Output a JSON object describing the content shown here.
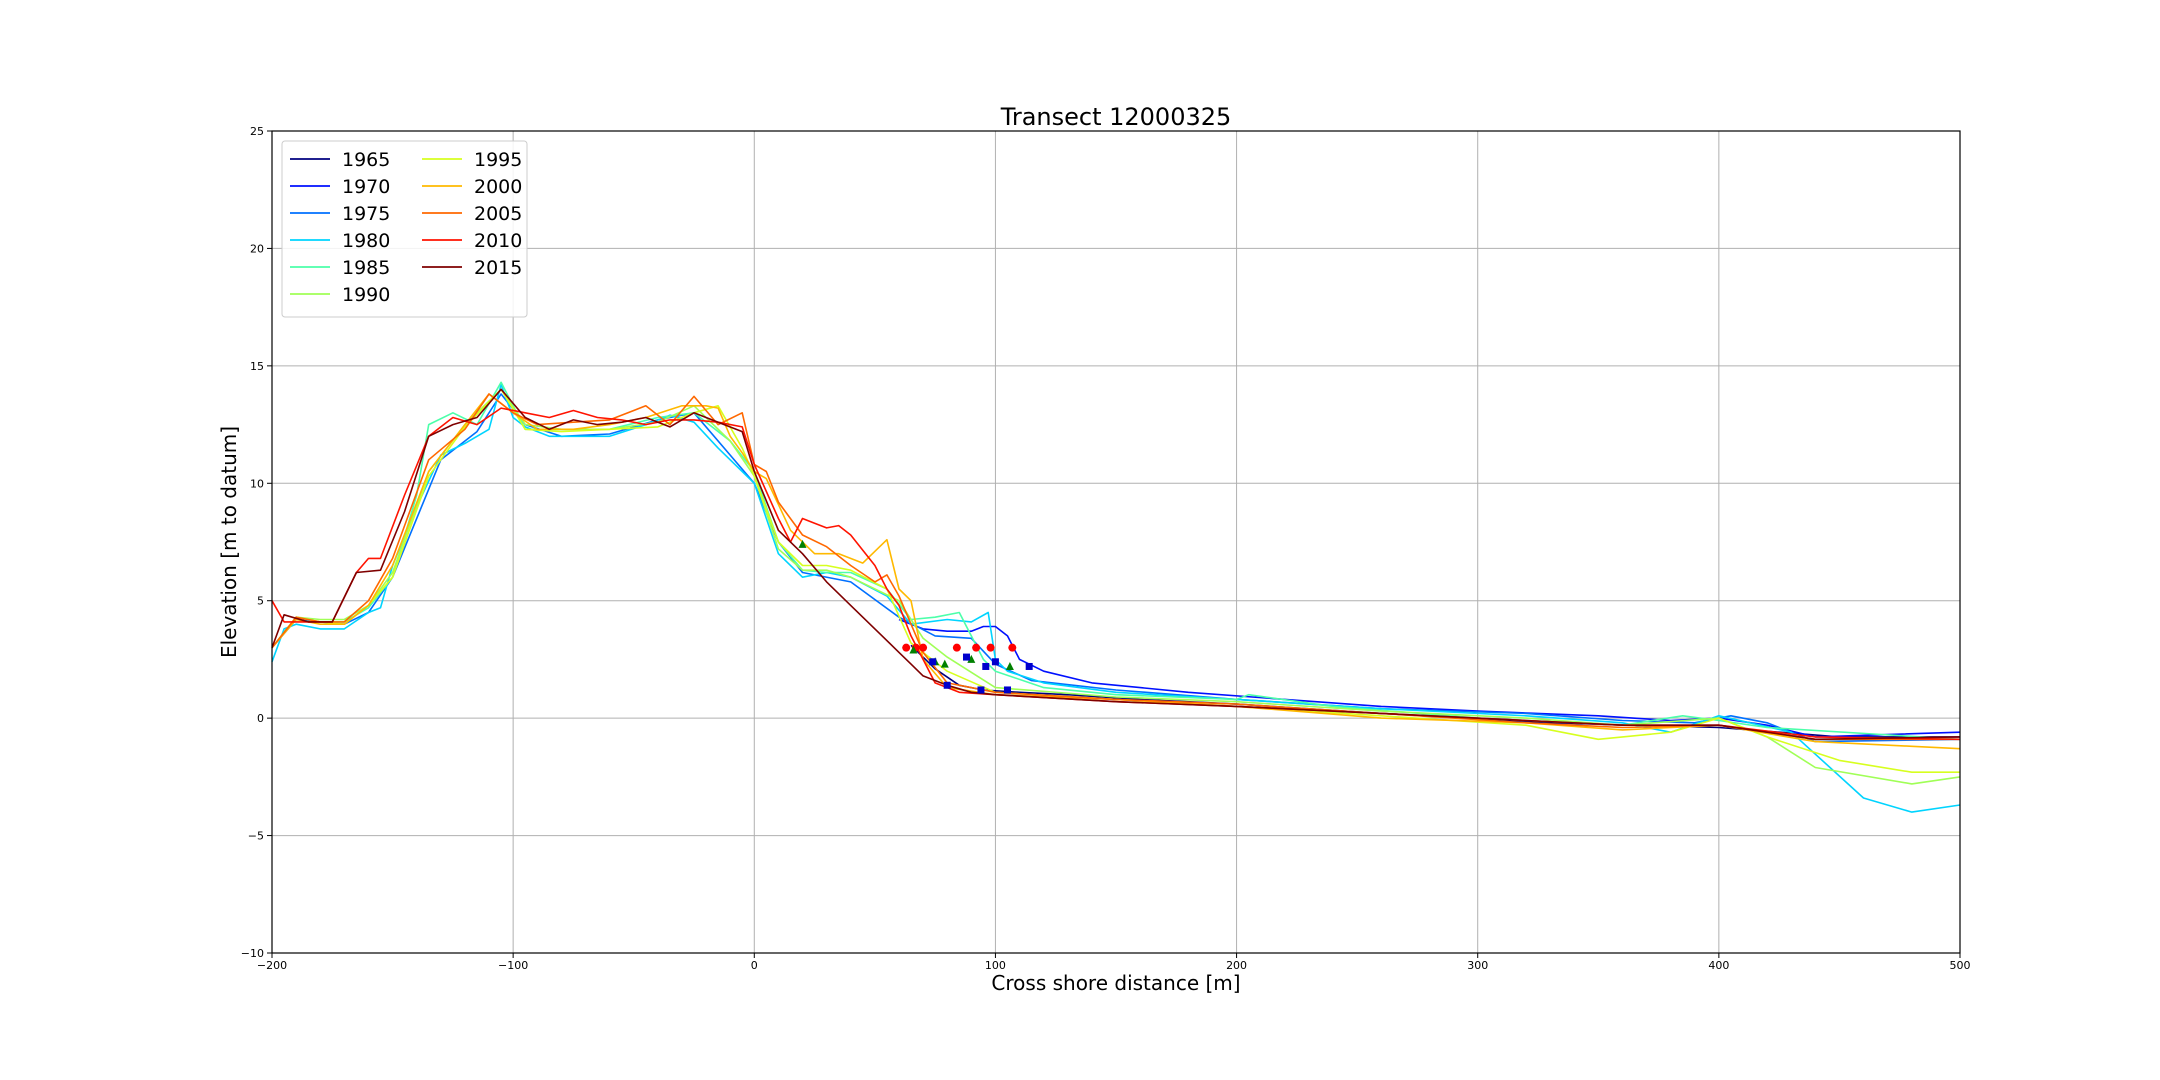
{
  "chart_data": {
    "type": "line",
    "title": "Transect 12000325",
    "xlabel": "Cross shore distance [m]",
    "ylabel": "Elevation [m to datum]",
    "xlim": [
      -200,
      500
    ],
    "ylim": [
      -10,
      25
    ],
    "xticks": [
      -200,
      -100,
      0,
      100,
      200,
      300,
      400,
      500
    ],
    "yticks": [
      -10,
      -5,
      0,
      5,
      10,
      15,
      20,
      25
    ],
    "grid": true,
    "legend_position": "top-left",
    "legend_columns": 2,
    "series": [
      {
        "name": "1965",
        "color": "#00007f",
        "x": [
          65,
          75,
          85,
          95,
          110,
          130,
          160,
          200,
          260,
          330,
          400,
          450,
          500
        ],
        "y": [
          3.1,
          2.1,
          1.4,
          1.2,
          1.1,
          1.0,
          0.8,
          0.6,
          0.2,
          -0.2,
          -0.4,
          -0.8,
          -0.8
        ]
      },
      {
        "name": "1970",
        "color": "#0010ff",
        "x": [
          60,
          70,
          80,
          90,
          95,
          100,
          105,
          110,
          120,
          140,
          180,
          220,
          260,
          300,
          350,
          380,
          400,
          420,
          440,
          500
        ],
        "y": [
          4.2,
          3.8,
          3.7,
          3.7,
          3.9,
          3.9,
          3.5,
          2.5,
          2.0,
          1.5,
          1.1,
          0.8,
          0.5,
          0.3,
          0.1,
          -0.1,
          0.0,
          -0.3,
          -0.8,
          -0.6
        ]
      },
      {
        "name": "1975",
        "color": "#0070ff",
        "x": [
          -200,
          -190,
          -180,
          -170,
          -160,
          -150,
          -130,
          -115,
          -105,
          -95,
          -80,
          -60,
          -40,
          -25,
          -10,
          0,
          10,
          20,
          40,
          60,
          75,
          90,
          100,
          115,
          150,
          200,
          260,
          320,
          360,
          390,
          405,
          420,
          440,
          500
        ],
        "y": [
          3.0,
          4.2,
          4.1,
          4.0,
          4.5,
          6.0,
          11.0,
          12.2,
          13.8,
          12.5,
          12.0,
          12.1,
          12.7,
          13.0,
          11.2,
          10.0,
          7.5,
          6.2,
          5.8,
          4.3,
          3.5,
          3.4,
          2.3,
          1.6,
          1.2,
          0.8,
          0.4,
          0.2,
          -0.1,
          -0.2,
          0.1,
          -0.2,
          -1.0,
          -0.9
        ]
      },
      {
        "name": "1980",
        "color": "#00d4ff",
        "x": [
          -200,
          -195,
          -190,
          -180,
          -170,
          -160,
          -155,
          -150,
          -140,
          -130,
          -120,
          -110,
          -105,
          -100,
          -95,
          -85,
          -75,
          -60,
          -45,
          -35,
          -25,
          -15,
          -5,
          0,
          10,
          20,
          30,
          40,
          55,
          65,
          80,
          90,
          97,
          100,
          105,
          120,
          150,
          200,
          260,
          320,
          360,
          380,
          400,
          430,
          460,
          480,
          500
        ],
        "y": [
          2.4,
          3.8,
          4.0,
          3.8,
          3.8,
          4.5,
          4.7,
          6.5,
          9.0,
          11.2,
          11.7,
          12.3,
          14.2,
          12.8,
          12.4,
          12.0,
          12.0,
          12.0,
          12.5,
          12.9,
          12.6,
          11.5,
          10.5,
          10.0,
          7.0,
          6.0,
          6.2,
          6.0,
          5.2,
          4.0,
          4.2,
          4.1,
          4.5,
          2.5,
          2.0,
          1.5,
          1.1,
          0.8,
          0.4,
          0.1,
          -0.2,
          -0.6,
          0.1,
          -0.6,
          -3.4,
          -4.0,
          -3.7
        ]
      },
      {
        "name": "1985",
        "color": "#4cffaa",
        "x": [
          -200,
          -190,
          -180,
          -170,
          -160,
          -150,
          -140,
          -135,
          -125,
          -115,
          -105,
          -95,
          -80,
          -60,
          -40,
          -25,
          -10,
          0,
          10,
          20,
          30,
          40,
          55,
          65,
          75,
          85,
          90,
          95,
          100,
          120,
          150,
          200,
          205,
          240,
          300,
          360,
          385,
          400,
          420,
          500
        ],
        "y": [
          3.0,
          4.3,
          4.1,
          4.1,
          4.7,
          6.0,
          9.5,
          12.5,
          13.0,
          12.5,
          14.3,
          12.3,
          12.3,
          12.3,
          12.8,
          13.0,
          11.8,
          10.5,
          7.5,
          6.3,
          6.2,
          6.2,
          5.5,
          4.2,
          4.3,
          4.5,
          3.5,
          2.5,
          2.0,
          1.3,
          1.0,
          0.8,
          1.0,
          0.5,
          0.0,
          -0.3,
          0.1,
          -0.1,
          -0.4,
          -0.9
        ]
      },
      {
        "name": "1990",
        "color": "#a0ff56",
        "x": [
          -200,
          -190,
          -180,
          -170,
          -160,
          -150,
          -135,
          -120,
          -105,
          -95,
          -80,
          -60,
          -40,
          -25,
          -10,
          0,
          10,
          20,
          30,
          40,
          60,
          70,
          80,
          100,
          150,
          200,
          260,
          320,
          360,
          400,
          420,
          440,
          480,
          500
        ],
        "y": [
          3.0,
          4.3,
          4.2,
          4.2,
          4.8,
          6.2,
          10.5,
          12.5,
          14.0,
          12.5,
          12.3,
          12.3,
          12.6,
          13.3,
          11.8,
          10.3,
          7.2,
          6.3,
          6.3,
          6.0,
          5.0,
          3.4,
          2.6,
          1.3,
          0.9,
          0.7,
          0.3,
          0.0,
          -0.3,
          0.0,
          -0.8,
          -2.1,
          -2.8,
          -2.5
        ]
      },
      {
        "name": "1995",
        "color": "#d7ff1f",
        "x": [
          -200,
          -190,
          -180,
          -170,
          -160,
          -150,
          -135,
          -120,
          -105,
          -95,
          -80,
          -60,
          -40,
          -25,
          -15,
          -5,
          0,
          10,
          20,
          30,
          40,
          55,
          65,
          80,
          100,
          150,
          200,
          260,
          320,
          350,
          380,
          400,
          420,
          450,
          480,
          500
        ],
        "y": [
          3.0,
          4.3,
          4.1,
          4.0,
          4.8,
          6.0,
          10.3,
          12.4,
          14.0,
          12.3,
          12.2,
          12.3,
          12.4,
          13.0,
          13.3,
          11.5,
          10.3,
          7.5,
          6.5,
          6.5,
          6.3,
          5.5,
          3.2,
          2.0,
          1.1,
          0.8,
          0.5,
          0.1,
          -0.3,
          -0.9,
          -0.6,
          0.0,
          -0.8,
          -1.8,
          -2.3,
          -2.3
        ]
      },
      {
        "name": "2000",
        "color": "#ffb900",
        "x": [
          -200,
          -190,
          -180,
          -170,
          -160,
          -150,
          -135,
          -120,
          -110,
          -100,
          -90,
          -75,
          -60,
          -45,
          -30,
          -20,
          -15,
          -10,
          -5,
          0,
          5,
          15,
          25,
          35,
          45,
          55,
          60,
          65,
          70,
          80,
          100,
          150,
          200,
          260,
          320,
          360,
          400,
          440,
          480,
          500
        ],
        "y": [
          3.0,
          4.2,
          4.0,
          4.0,
          4.8,
          6.5,
          10.5,
          12.5,
          13.8,
          13.0,
          12.3,
          12.3,
          12.5,
          12.8,
          13.3,
          13.3,
          13.2,
          12.0,
          11.3,
          10.5,
          10.2,
          8.0,
          7.0,
          7.0,
          6.6,
          7.6,
          5.5,
          5.0,
          2.5,
          1.3,
          1.0,
          0.8,
          0.5,
          0.0,
          -0.2,
          -0.5,
          -0.3,
          -1.0,
          -1.2,
          -1.3
        ]
      },
      {
        "name": "2005",
        "color": "#ff6800",
        "x": [
          -200,
          -190,
          -180,
          -170,
          -160,
          -150,
          -135,
          -120,
          -110,
          -100,
          -90,
          -75,
          -60,
          -45,
          -35,
          -25,
          -15,
          -5,
          0,
          5,
          10,
          20,
          30,
          40,
          50,
          55,
          60,
          70,
          80,
          100,
          150,
          200,
          260,
          320,
          360,
          400,
          440,
          500
        ],
        "y": [
          3.0,
          4.3,
          4.1,
          4.1,
          5.0,
          6.8,
          11.0,
          12.3,
          13.8,
          13.0,
          12.5,
          12.6,
          12.7,
          13.3,
          12.5,
          13.7,
          12.5,
          13.0,
          10.8,
          10.5,
          9.2,
          7.8,
          7.3,
          6.5,
          5.8,
          6.1,
          5.2,
          2.8,
          1.5,
          1.1,
          0.8,
          0.6,
          0.2,
          -0.2,
          -0.4,
          -0.3,
          -0.9,
          -0.9
        ]
      },
      {
        "name": "2010",
        "color": "#ff1300",
        "x": [
          -200,
          -195,
          -185,
          -175,
          -165,
          -160,
          -155,
          -145,
          -135,
          -125,
          -115,
          -105,
          -95,
          -85,
          -75,
          -65,
          -55,
          -45,
          -35,
          -25,
          -15,
          -5,
          0,
          10,
          15,
          20,
          25,
          30,
          35,
          40,
          50,
          55,
          60,
          65,
          70,
          75,
          85,
          100,
          150,
          200,
          260,
          320,
          360,
          400,
          440,
          500
        ],
        "y": [
          5.0,
          4.1,
          4.1,
          4.1,
          6.2,
          6.8,
          6.8,
          9.5,
          12.0,
          12.8,
          12.5,
          13.2,
          13.0,
          12.8,
          13.1,
          12.8,
          12.7,
          12.5,
          12.7,
          12.7,
          12.6,
          12.4,
          10.8,
          8.5,
          7.5,
          8.5,
          8.3,
          8.1,
          8.2,
          7.8,
          6.5,
          5.5,
          4.8,
          3.5,
          2.5,
          1.5,
          1.1,
          1.0,
          0.7,
          0.5,
          0.2,
          -0.1,
          -0.3,
          -0.3,
          -0.8,
          -0.9
        ]
      },
      {
        "name": "2015",
        "color": "#7f0000",
        "x": [
          -200,
          -195,
          -185,
          -175,
          -165,
          -155,
          -145,
          -135,
          -125,
          -115,
          -105,
          -95,
          -85,
          -75,
          -65,
          -55,
          -45,
          -35,
          -25,
          -15,
          -5,
          0,
          10,
          20,
          30,
          40,
          50,
          60,
          65,
          70,
          80,
          90,
          100,
          150,
          200,
          260,
          320,
          360,
          400,
          440,
          500
        ],
        "y": [
          3.0,
          4.4,
          4.1,
          4.1,
          6.2,
          6.3,
          8.8,
          12.0,
          12.5,
          12.8,
          14.0,
          12.8,
          12.3,
          12.7,
          12.5,
          12.6,
          12.8,
          12.4,
          13.0,
          12.6,
          12.2,
          10.5,
          8.0,
          7.0,
          5.8,
          4.8,
          3.8,
          2.8,
          2.3,
          1.8,
          1.4,
          1.1,
          1.0,
          0.7,
          0.5,
          0.2,
          -0.1,
          -0.3,
          -0.3,
          -0.9,
          -0.8
        ]
      }
    ],
    "markers": [
      {
        "shape": "circle",
        "color": "#ff0000",
        "x": [
          63,
          67,
          70,
          84,
          92,
          98,
          107
        ],
        "y": [
          3.0,
          3.0,
          3.0,
          3.0,
          3.0,
          3.0,
          3.0
        ]
      },
      {
        "shape": "triangle",
        "color": "#008000",
        "x": [
          20,
          66,
          75,
          79,
          90,
          106
        ],
        "y": [
          7.4,
          2.9,
          2.4,
          2.3,
          2.5,
          2.2
        ]
      },
      {
        "shape": "square",
        "color": "#0000cc",
        "x": [
          74,
          80,
          88,
          94,
          96,
          100,
          105,
          114
        ],
        "y": [
          2.4,
          1.4,
          2.6,
          1.2,
          2.2,
          2.4,
          1.2,
          2.2
        ]
      }
    ]
  }
}
